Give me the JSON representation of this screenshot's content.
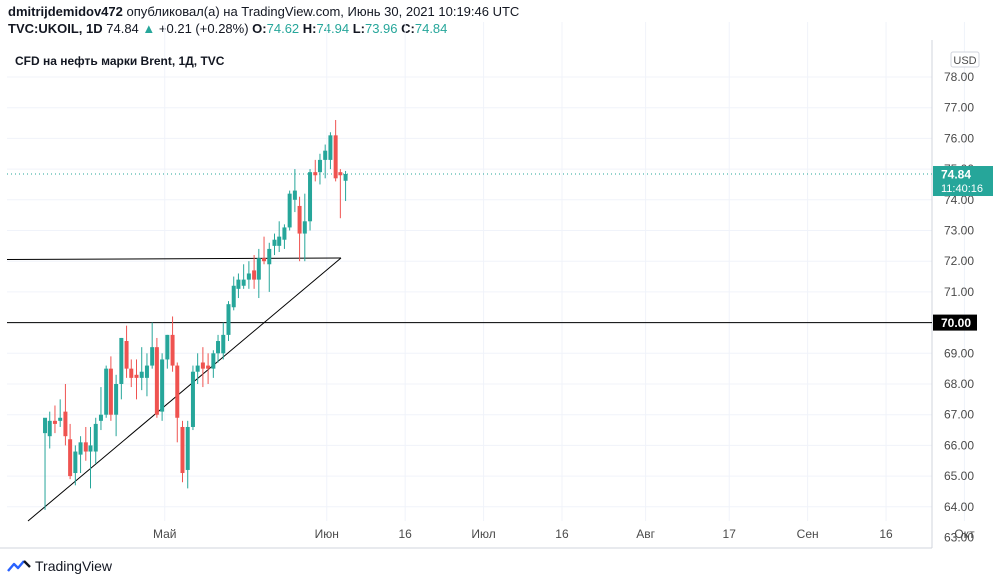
{
  "header": {
    "author": "dmitrijdemidov472",
    "published_text": "опубликовал(а) на TradingView.com, Июнь 30, 2021 10:19:46 UTC",
    "symbol": "TVC:UKOIL, 1D",
    "last": "74.84",
    "arrow": "▲",
    "change": "+0.21 (+0.28%)",
    "o_label": "O:",
    "o_value": "74.62",
    "h_label": "H:",
    "h_value": "74.94",
    "l_label": "L:",
    "l_value": "73.96",
    "c_label": "C:",
    "c_value": "74.84"
  },
  "chart_data": {
    "type": "candlestick",
    "title": "CFD на нефть марки Brent, 1Д, TVC",
    "currency": "USD",
    "ylim": [
      62.5,
      78.0
    ],
    "y_ticks": [
      "78.00",
      "77.00",
      "76.00",
      "75.00",
      "74.00",
      "73.00",
      "72.00",
      "71.00",
      "70.00",
      "69.00",
      "68.00",
      "67.00",
      "66.00",
      "65.00",
      "64.00",
      "63.00"
    ],
    "x_ticks": [
      {
        "label": "Май",
        "day": 12
      },
      {
        "label": "Июн",
        "day": 43
      },
      {
        "label": "16",
        "day": 58
      },
      {
        "label": "Июл",
        "day": 73
      },
      {
        "label": "16",
        "day": 88
      },
      {
        "label": "Авг",
        "day": 104
      },
      {
        "label": "17",
        "day": 120
      },
      {
        "label": "Сен",
        "day": 135
      },
      {
        "label": "16",
        "day": 150
      },
      {
        "label": "Окт",
        "day": 165
      }
    ],
    "candles": [
      {
        "d": -10.9,
        "o": 66.4,
        "h": 66.8,
        "l": 63.9,
        "c": 66.9
      },
      {
        "d": -10.0,
        "o": 66.3,
        "h": 67.1,
        "l": 65.9,
        "c": 66.8
      },
      {
        "d": -9.0,
        "o": 66.8,
        "h": 67.3,
        "l": 66.4,
        "c": 66.7
      },
      {
        "d": -8.0,
        "o": 66.8,
        "h": 67.5,
        "l": 66.6,
        "c": 66.9
      },
      {
        "d": -7.0,
        "o": 67.1,
        "h": 68.0,
        "l": 66.0,
        "c": 66.3
      },
      {
        "d": -6.1,
        "o": 66.2,
        "h": 66.7,
        "l": 64.9,
        "c": 65.0
      },
      {
        "d": -5.1,
        "o": 65.1,
        "h": 66.0,
        "l": 64.7,
        "c": 65.8
      },
      {
        "d": -4.1,
        "o": 65.7,
        "h": 66.3,
        "l": 65.1,
        "c": 66.1
      },
      {
        "d": -3.1,
        "o": 66.1,
        "h": 66.6,
        "l": 65.5,
        "c": 65.8
      },
      {
        "d": -2.2,
        "o": 65.8,
        "h": 66.6,
        "l": 64.6,
        "c": 66.0
      },
      {
        "d": -1.2,
        "o": 65.8,
        "h": 66.9,
        "l": 65.4,
        "c": 66.7
      },
      {
        "d": -0.2,
        "o": 66.8,
        "h": 67.9,
        "l": 66.5,
        "c": 67.0
      },
      {
        "d": 0.8,
        "o": 67.0,
        "h": 68.6,
        "l": 66.9,
        "c": 68.5
      },
      {
        "d": 1.7,
        "o": 68.5,
        "h": 68.9,
        "l": 66.8,
        "c": 67.0
      },
      {
        "d": 2.7,
        "o": 67.0,
        "h": 68.3,
        "l": 66.3,
        "c": 68.0
      },
      {
        "d": 3.7,
        "o": 68.0,
        "h": 69.5,
        "l": 67.5,
        "c": 69.5
      },
      {
        "d": 4.7,
        "o": 69.4,
        "h": 69.9,
        "l": 68.2,
        "c": 68.5
      },
      {
        "d": 5.6,
        "o": 68.5,
        "h": 68.8,
        "l": 67.9,
        "c": 68.2
      },
      {
        "d": 6.6,
        "o": 68.3,
        "h": 68.8,
        "l": 67.5,
        "c": 68.2
      },
      {
        "d": 7.6,
        "o": 68.2,
        "h": 69.2,
        "l": 67.8,
        "c": 68.4
      },
      {
        "d": 8.6,
        "o": 68.2,
        "h": 69.0,
        "l": 67.6,
        "c": 68.6
      },
      {
        "d": 9.6,
        "o": 68.6,
        "h": 70.0,
        "l": 68.5,
        "c": 69.2
      },
      {
        "d": 10.5,
        "o": 69.2,
        "h": 69.5,
        "l": 66.9,
        "c": 67.0
      },
      {
        "d": 11.5,
        "o": 67.1,
        "h": 69.0,
        "l": 66.8,
        "c": 68.8
      },
      {
        "d": 12.5,
        "o": 68.8,
        "h": 69.6,
        "l": 68.5,
        "c": 69.6
      },
      {
        "d": 13.5,
        "o": 69.6,
        "h": 70.2,
        "l": 68.4,
        "c": 68.6
      },
      {
        "d": 14.4,
        "o": 68.6,
        "h": 68.7,
        "l": 66.1,
        "c": 66.9
      },
      {
        "d": 15.4,
        "o": 66.6,
        "h": 66.8,
        "l": 64.8,
        "c": 65.1
      },
      {
        "d": 16.4,
        "o": 65.2,
        "h": 66.8,
        "l": 64.6,
        "c": 66.6
      },
      {
        "d": 17.4,
        "o": 66.6,
        "h": 68.6,
        "l": 66.5,
        "c": 68.4
      },
      {
        "d": 18.3,
        "o": 68.4,
        "h": 69.0,
        "l": 68.0,
        "c": 68.6
      },
      {
        "d": 19.3,
        "o": 68.7,
        "h": 69.2,
        "l": 67.9,
        "c": 68.5
      },
      {
        "d": 20.3,
        "o": 68.6,
        "h": 69.0,
        "l": 68.0,
        "c": 68.5
      },
      {
        "d": 21.3,
        "o": 68.5,
        "h": 69.1,
        "l": 68.2,
        "c": 69.0
      },
      {
        "d": 22.2,
        "o": 69.0,
        "h": 69.6,
        "l": 68.7,
        "c": 69.4
      },
      {
        "d": 23.2,
        "o": 69.0,
        "h": 70.0,
        "l": 68.8,
        "c": 69.6
      },
      {
        "d": 24.2,
        "o": 69.6,
        "h": 70.7,
        "l": 69.4,
        "c": 70.6
      },
      {
        "d": 25.2,
        "o": 70.5,
        "h": 71.5,
        "l": 70.4,
        "c": 71.2
      },
      {
        "d": 26.1,
        "o": 71.1,
        "h": 71.6,
        "l": 70.8,
        "c": 71.4
      },
      {
        "d": 27.1,
        "o": 71.2,
        "h": 71.9,
        "l": 71.1,
        "c": 71.4
      },
      {
        "d": 28.1,
        "o": 71.4,
        "h": 72.0,
        "l": 71.1,
        "c": 71.6
      },
      {
        "d": 29.1,
        "o": 71.7,
        "h": 72.2,
        "l": 71.1,
        "c": 71.4
      },
      {
        "d": 30.0,
        "o": 71.4,
        "h": 72.4,
        "l": 70.8,
        "c": 72.1
      },
      {
        "d": 31.0,
        "o": 72.1,
        "h": 72.8,
        "l": 71.9,
        "c": 72.0
      },
      {
        "d": 32.0,
        "o": 71.9,
        "h": 72.6,
        "l": 71.0,
        "c": 72.4
      },
      {
        "d": 33.0,
        "o": 72.5,
        "h": 72.9,
        "l": 72.2,
        "c": 72.7
      },
      {
        "d": 33.9,
        "o": 72.5,
        "h": 73.3,
        "l": 72.3,
        "c": 72.8
      },
      {
        "d": 34.9,
        "o": 72.7,
        "h": 73.2,
        "l": 72.4,
        "c": 73.1
      },
      {
        "d": 35.9,
        "o": 73.1,
        "h": 74.3,
        "l": 73.0,
        "c": 74.2
      },
      {
        "d": 36.9,
        "o": 74.0,
        "h": 75.0,
        "l": 73.6,
        "c": 74.3
      },
      {
        "d": 37.8,
        "o": 73.8,
        "h": 74.1,
        "l": 72.0,
        "c": 72.9
      },
      {
        "d": 38.8,
        "o": 72.9,
        "h": 74.2,
        "l": 72.0,
        "c": 73.3
      },
      {
        "d": 39.8,
        "o": 73.3,
        "h": 75.0,
        "l": 73.0,
        "c": 74.9
      },
      {
        "d": 40.8,
        "o": 74.9,
        "h": 75.3,
        "l": 74.6,
        "c": 74.8
      },
      {
        "d": 41.7,
        "o": 74.9,
        "h": 75.5,
        "l": 74.5,
        "c": 75.3
      },
      {
        "d": 42.7,
        "o": 75.3,
        "h": 75.8,
        "l": 74.7,
        "c": 75.6
      },
      {
        "d": 43.7,
        "o": 75.3,
        "h": 76.2,
        "l": 75.0,
        "c": 76.1
      },
      {
        "d": 44.7,
        "o": 76.1,
        "h": 76.6,
        "l": 74.6,
        "c": 74.7
      },
      {
        "d": 45.6,
        "o": 74.9,
        "h": 75.0,
        "l": 73.4,
        "c": 74.8
      },
      {
        "d": 46.6,
        "o": 74.62,
        "h": 74.94,
        "l": 73.96,
        "c": 74.84
      }
    ],
    "current_price_label": "74.84",
    "countdown_label": "11:40:16",
    "horizontal_level_label": "70.00",
    "colors": {
      "up": "#26a69a",
      "down": "#ef5350",
      "text": "#131722",
      "axis_text": "#4a4a4a",
      "grid": "#f0f3fa",
      "axis_line": "#d1d4dc",
      "drawing": "#000000",
      "price_badge_bg": "#26a69a",
      "level_badge_bg": "#000000"
    }
  },
  "footer": {
    "logo_text": "TradingView"
  }
}
